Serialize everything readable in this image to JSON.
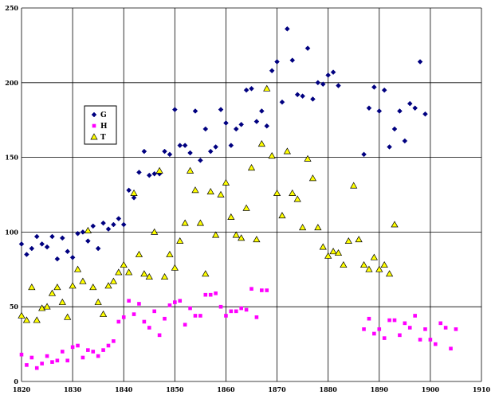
{
  "chart_data": {
    "type": "scatter",
    "title": "",
    "xlabel": "",
    "ylabel": "",
    "xlim": [
      1820,
      1910
    ],
    "ylim": [
      0,
      250
    ],
    "xticks": [
      1820,
      1830,
      1840,
      1850,
      1860,
      1870,
      1880,
      1890,
      1900,
      1910
    ],
    "yticks": [
      0,
      50,
      100,
      150,
      200,
      250
    ],
    "grid": true,
    "legend_position": "left",
    "series": [
      {
        "name": "G",
        "marker": "diamond",
        "color": "#000080",
        "points": [
          [
            1820,
            92
          ],
          [
            1821,
            85
          ],
          [
            1822,
            89
          ],
          [
            1823,
            97
          ],
          [
            1824,
            92
          ],
          [
            1825,
            90
          ],
          [
            1826,
            97
          ],
          [
            1827,
            82
          ],
          [
            1828,
            96
          ],
          [
            1829,
            87
          ],
          [
            1830,
            83
          ],
          [
            1831,
            99
          ],
          [
            1832,
            100
          ],
          [
            1833,
            94
          ],
          [
            1834,
            104
          ],
          [
            1835,
            89
          ],
          [
            1836,
            106
          ],
          [
            1837,
            102
          ],
          [
            1838,
            105
          ],
          [
            1839,
            109
          ],
          [
            1840,
            105
          ],
          [
            1841,
            128
          ],
          [
            1842,
            123
          ],
          [
            1843,
            140
          ],
          [
            1844,
            154
          ],
          [
            1845,
            138
          ],
          [
            1846,
            139
          ],
          [
            1847,
            139
          ],
          [
            1848,
            154
          ],
          [
            1849,
            152
          ],
          [
            1850,
            182
          ],
          [
            1851,
            158
          ],
          [
            1852,
            158
          ],
          [
            1853,
            153
          ],
          [
            1854,
            181
          ],
          [
            1855,
            148
          ],
          [
            1856,
            169
          ],
          [
            1857,
            154
          ],
          [
            1858,
            157
          ],
          [
            1859,
            182
          ],
          [
            1860,
            173
          ],
          [
            1861,
            158
          ],
          [
            1862,
            169
          ],
          [
            1863,
            172
          ],
          [
            1864,
            195
          ],
          [
            1865,
            196
          ],
          [
            1866,
            174
          ],
          [
            1867,
            181
          ],
          [
            1868,
            171
          ],
          [
            1869,
            208
          ],
          [
            1870,
            214
          ],
          [
            1871,
            187
          ],
          [
            1872,
            236
          ],
          [
            1873,
            215
          ],
          [
            1874,
            192
          ],
          [
            1875,
            191
          ],
          [
            1876,
            223
          ],
          [
            1877,
            189
          ],
          [
            1878,
            200
          ],
          [
            1879,
            199
          ],
          [
            1880,
            205
          ],
          [
            1881,
            207
          ],
          [
            1882,
            198
          ],
          [
            1887,
            152
          ],
          [
            1888,
            183
          ],
          [
            1889,
            197
          ],
          [
            1890,
            181
          ],
          [
            1891,
            195
          ],
          [
            1892,
            157
          ],
          [
            1893,
            169
          ],
          [
            1894,
            181
          ],
          [
            1895,
            161
          ],
          [
            1896,
            186
          ],
          [
            1897,
            183
          ],
          [
            1898,
            214
          ],
          [
            1899,
            179
          ]
        ]
      },
      {
        "name": "H",
        "marker": "square",
        "color": "#FF00FF",
        "points": [
          [
            1820,
            18
          ],
          [
            1821,
            11
          ],
          [
            1822,
            16
          ],
          [
            1823,
            9
          ],
          [
            1824,
            12
          ],
          [
            1825,
            17
          ],
          [
            1826,
            13
          ],
          [
            1827,
            14
          ],
          [
            1828,
            20
          ],
          [
            1829,
            14
          ],
          [
            1830,
            23
          ],
          [
            1831,
            24
          ],
          [
            1832,
            16
          ],
          [
            1833,
            21
          ],
          [
            1834,
            20
          ],
          [
            1835,
            17
          ],
          [
            1836,
            21
          ],
          [
            1837,
            24
          ],
          [
            1838,
            27
          ],
          [
            1839,
            40
          ],
          [
            1840,
            43
          ],
          [
            1841,
            54
          ],
          [
            1842,
            45
          ],
          [
            1843,
            52
          ],
          [
            1844,
            40
          ],
          [
            1845,
            36
          ],
          [
            1846,
            47
          ],
          [
            1847,
            31
          ],
          [
            1848,
            42
          ],
          [
            1849,
            51
          ],
          [
            1850,
            53
          ],
          [
            1851,
            54
          ],
          [
            1852,
            38
          ],
          [
            1853,
            49
          ],
          [
            1854,
            44
          ],
          [
            1855,
            44
          ],
          [
            1856,
            58
          ],
          [
            1857,
            58
          ],
          [
            1858,
            59
          ],
          [
            1859,
            50
          ],
          [
            1860,
            44
          ],
          [
            1861,
            47
          ],
          [
            1862,
            47
          ],
          [
            1863,
            49
          ],
          [
            1864,
            48
          ],
          [
            1865,
            62
          ],
          [
            1866,
            43
          ],
          [
            1867,
            61
          ],
          [
            1868,
            61
          ],
          [
            1887,
            35
          ],
          [
            1888,
            42
          ],
          [
            1889,
            32
          ],
          [
            1890,
            35
          ],
          [
            1891,
            29
          ],
          [
            1892,
            41
          ],
          [
            1893,
            41
          ],
          [
            1894,
            31
          ],
          [
            1895,
            39
          ],
          [
            1896,
            36
          ],
          [
            1897,
            44
          ],
          [
            1898,
            28
          ],
          [
            1899,
            35
          ],
          [
            1900,
            28
          ],
          [
            1901,
            25
          ],
          [
            1902,
            39
          ],
          [
            1903,
            36
          ],
          [
            1904,
            22
          ],
          [
            1905,
            35
          ]
        ]
      },
      {
        "name": "T",
        "marker": "triangle",
        "color": "#FFFF00",
        "points": [
          [
            1820,
            44
          ],
          [
            1821,
            41
          ],
          [
            1822,
            63
          ],
          [
            1823,
            41
          ],
          [
            1824,
            49
          ],
          [
            1825,
            50
          ],
          [
            1826,
            59
          ],
          [
            1827,
            63
          ],
          [
            1828,
            53
          ],
          [
            1829,
            43
          ],
          [
            1830,
            64
          ],
          [
            1831,
            75
          ],
          [
            1832,
            67
          ],
          [
            1833,
            101
          ],
          [
            1834,
            63
          ],
          [
            1835,
            53
          ],
          [
            1836,
            45
          ],
          [
            1837,
            64
          ],
          [
            1838,
            67
          ],
          [
            1839,
            73
          ],
          [
            1840,
            78
          ],
          [
            1841,
            73
          ],
          [
            1842,
            126
          ],
          [
            1843,
            85
          ],
          [
            1844,
            72
          ],
          [
            1845,
            70
          ],
          [
            1846,
            100
          ],
          [
            1847,
            141
          ],
          [
            1848,
            70
          ],
          [
            1849,
            85
          ],
          [
            1850,
            76
          ],
          [
            1851,
            94
          ],
          [
            1852,
            106
          ],
          [
            1853,
            141
          ],
          [
            1854,
            128
          ],
          [
            1855,
            106
          ],
          [
            1856,
            72
          ],
          [
            1857,
            127
          ],
          [
            1858,
            98
          ],
          [
            1859,
            125
          ],
          [
            1860,
            133
          ],
          [
            1861,
            110
          ],
          [
            1862,
            98
          ],
          [
            1863,
            96
          ],
          [
            1864,
            116
          ],
          [
            1865,
            143
          ],
          [
            1866,
            95
          ],
          [
            1867,
            159
          ],
          [
            1868,
            196
          ],
          [
            1869,
            151
          ],
          [
            1870,
            126
          ],
          [
            1871,
            111
          ],
          [
            1872,
            154
          ],
          [
            1873,
            126
          ],
          [
            1874,
            122
          ],
          [
            1875,
            103
          ],
          [
            1876,
            149
          ],
          [
            1877,
            136
          ],
          [
            1878,
            103
          ],
          [
            1879,
            90
          ],
          [
            1880,
            84
          ],
          [
            1881,
            87
          ],
          [
            1882,
            86
          ],
          [
            1883,
            78
          ],
          [
            1884,
            94
          ],
          [
            1885,
            131
          ],
          [
            1886,
            95
          ],
          [
            1887,
            78
          ],
          [
            1888,
            75
          ],
          [
            1889,
            83
          ],
          [
            1890,
            75
          ],
          [
            1891,
            78
          ],
          [
            1892,
            72
          ],
          [
            1893,
            105
          ]
        ]
      }
    ]
  }
}
